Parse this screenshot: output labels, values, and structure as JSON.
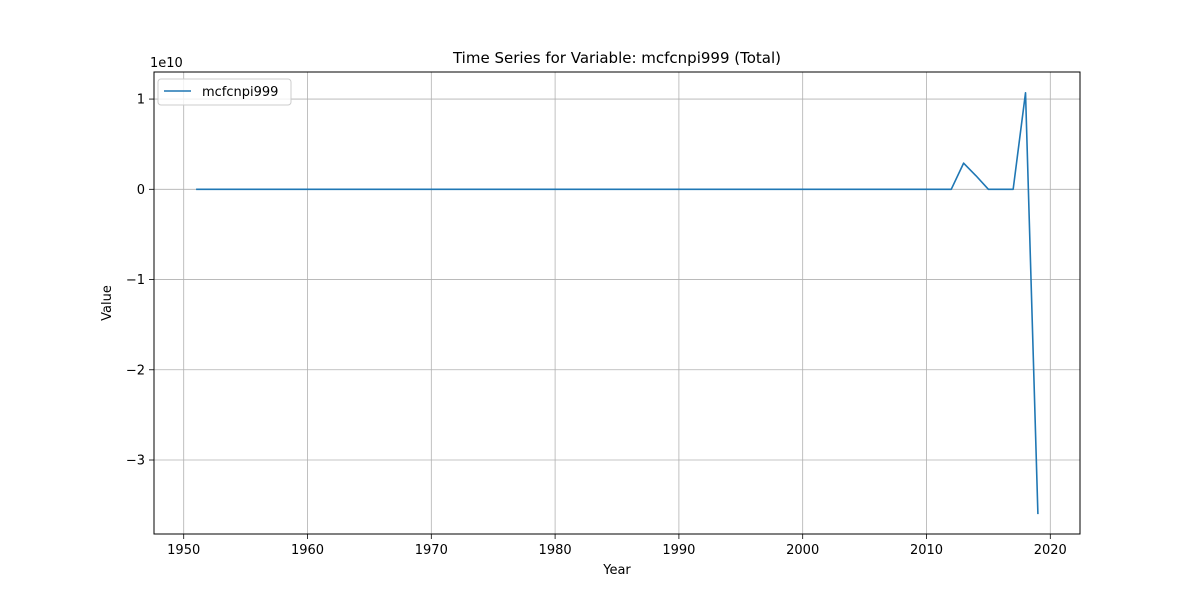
{
  "chart_data": {
    "type": "line",
    "title": "Time Series for Variable: mcfcnpi999 (Total)",
    "xlabel": "Year",
    "ylabel": "Value",
    "y_offset_label": "1e10",
    "xlim": [
      1947.6,
      2022.4
    ],
    "ylim": [
      -3.82,
      1.3
    ],
    "y_unit_multiplier": 10000000000,
    "x_ticks": [
      1950,
      1960,
      1970,
      1980,
      1990,
      2000,
      2010,
      2020
    ],
    "x_tick_labels": [
      "1950",
      "1960",
      "1970",
      "1980",
      "1990",
      "2000",
      "2010",
      "2020"
    ],
    "y_ticks": [
      -3,
      -2,
      -1,
      0,
      1
    ],
    "y_tick_labels": [
      "−3",
      "−2",
      "−1",
      "0",
      "1"
    ],
    "grid": true,
    "legend_position": "upper-left",
    "series": [
      {
        "name": "mcfcnpi999",
        "color": "#1f77b4",
        "x": [
          1951,
          1960,
          1970,
          1980,
          1990,
          2000,
          2010,
          2012,
          2013,
          2014,
          2015,
          2016,
          2017,
          2018,
          2019
        ],
        "y": [
          0,
          0,
          0,
          0,
          0,
          0,
          0,
          0,
          0.29,
          0.15,
          0,
          0,
          0,
          1.07,
          -3.6
        ]
      }
    ]
  }
}
